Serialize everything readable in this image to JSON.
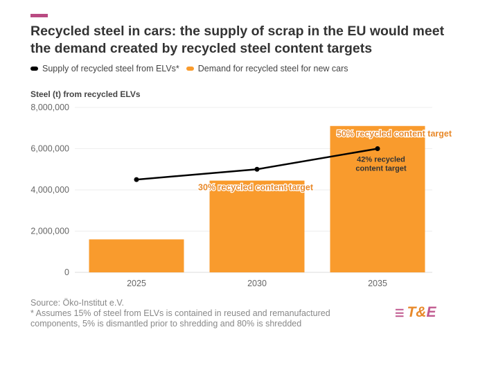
{
  "title": "Recycled steel in cars: the supply of scrap in the EU would meet the demand created by recycled steel content targets",
  "legend": [
    {
      "label": "Supply of recycled steel from ELVs*",
      "color": "#000000"
    },
    {
      "label": "Demand for recycled steel for new cars",
      "color": "#f99b2d"
    }
  ],
  "footer": {
    "source": "Source: Öko-Institut e.V.",
    "note": "* Assumes 15% of steel from ELVs is contained in reused and remanufactured components, 5% is dismantled prior to shredding and 80% is shredded"
  },
  "logo": "T&E",
  "colors": {
    "accent": "#b94a82",
    "bar": "#f99b2d",
    "line": "#000000",
    "annotation": "#e8892a"
  },
  "chart_data": {
    "type": "bar+line",
    "ylabel": "Steel (t) from recycled ELVs",
    "categories": [
      "2025",
      "2030",
      "2035"
    ],
    "ylim": [
      0,
      8000000
    ],
    "yticks": [
      "0",
      "2,000,000",
      "4,000,000",
      "6,000,000",
      "8,000,000"
    ],
    "ytick_values": [
      0,
      2000000,
      4000000,
      6000000,
      8000000
    ],
    "grid": true,
    "legend_position": "top-left",
    "series": [
      {
        "name": "Demand for recycled steel for new cars",
        "type": "bar",
        "values": [
          1600000,
          4450000,
          7100000
        ]
      },
      {
        "name": "Supply of recycled steel from ELVs*",
        "type": "line",
        "values": [
          4500000,
          5000000,
          6000000
        ]
      }
    ],
    "annotations": [
      {
        "text": "30% recycled content target",
        "category": "2030"
      },
      {
        "text": "50% recycled content target",
        "category": "2035"
      },
      {
        "text_lines": [
          "42% recycled",
          "content target"
        ],
        "category": "2035"
      }
    ]
  }
}
